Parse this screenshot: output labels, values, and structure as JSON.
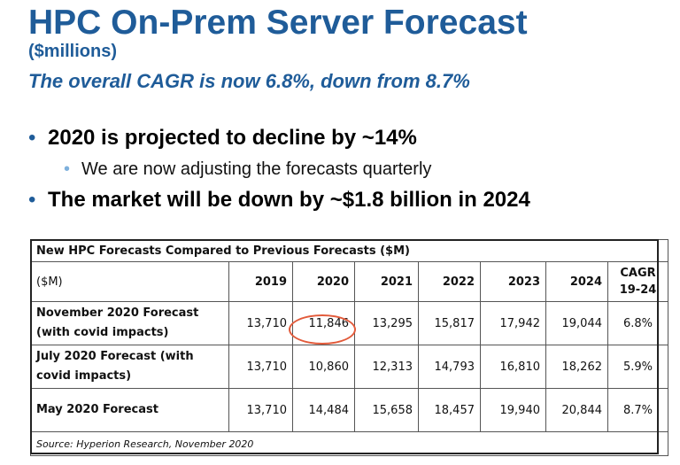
{
  "title": "HPC On-Prem Server Forecast",
  "units": "($millions)",
  "subtitle": "The overall CAGR is now 6.8%, down from 8.7%",
  "bullets": [
    {
      "text": "2020 is projected to decline by ~14%"
    },
    {
      "text": "We are now adjusting the forecasts quarterly"
    },
    {
      "text": "The market will be down by ~$1.8 billion in 2024"
    }
  ],
  "bullet_char": "•",
  "table": {
    "caption": "New HPC Forecasts Compared to Previous Forecasts ($M)",
    "corner": "($M)",
    "years": [
      "2019",
      "2020",
      "2021",
      "2022",
      "2023",
      "2024"
    ],
    "cagr_header": "CAGR 19-24",
    "rows": [
      {
        "label": "November 2020 Forecast (with covid impacts)",
        "values": [
          "13,710",
          "11,846",
          "13,295",
          "15,817",
          "17,942",
          "19,044"
        ],
        "cagr": "6.8%"
      },
      {
        "label": "July 2020 Forecast (with covid impacts)",
        "values": [
          "13,710",
          "10,860",
          "12,313",
          "14,793",
          "16,810",
          "18,262"
        ],
        "cagr": "5.9%"
      },
      {
        "label": "May 2020 Forecast",
        "values": [
          "13,710",
          "14,484",
          "15,658",
          "18,457",
          "19,940",
          "20,844"
        ],
        "cagr": "8.7%"
      }
    ],
    "source": "Source: Hyperion Research, November 2020",
    "highlight_color": "#e25a3a"
  },
  "colors": {
    "title": "#1f5c99",
    "bullet_sub": "#7eb0dc"
  }
}
